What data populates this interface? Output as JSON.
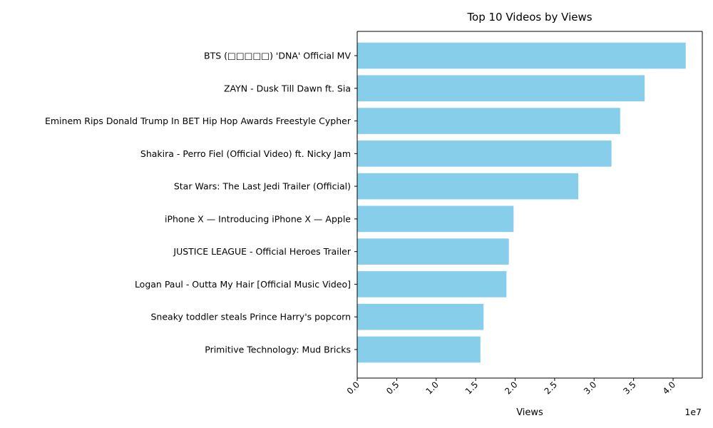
{
  "chart_data": {
    "type": "bar",
    "orientation": "horizontal",
    "title": "Top 10 Videos by Views",
    "xlabel": "Views",
    "ylabel": "",
    "axis_offset_text": "1e7",
    "xlim": [
      0,
      43700000
    ],
    "xticks": [
      0,
      5000000,
      10000000,
      15000000,
      20000000,
      25000000,
      30000000,
      35000000,
      40000000
    ],
    "xtick_labels": [
      "0.0",
      "0.5",
      "1.0",
      "1.5",
      "2.0",
      "2.5",
      "3.0",
      "3.5",
      "4.0"
    ],
    "bar_color": "#87CEEB",
    "grid": false,
    "categories": [
      "BTS (□□□□□) 'DNA' Official MV",
      "ZAYN - Dusk Till Dawn ft. Sia",
      "Eminem Rips Donald Trump In BET Hip Hop Awards Freestyle Cypher",
      "Shakira - Perro Fiel (Official Video) ft. Nicky Jam",
      "Star Wars: The Last Jedi Trailer (Official)",
      "iPhone X — Introducing iPhone X — Apple",
      "JUSTICE LEAGUE - Official Heroes Trailer",
      "Logan Paul - Outta My Hair [Official Music Video]",
      "Sneaky toddler steals Prince Harry's popcorn",
      "Primitive Technology: Mud Bricks"
    ],
    "values": [
      41600000,
      36400000,
      33300000,
      32200000,
      28000000,
      19800000,
      19200000,
      18900000,
      16000000,
      15600000
    ]
  }
}
